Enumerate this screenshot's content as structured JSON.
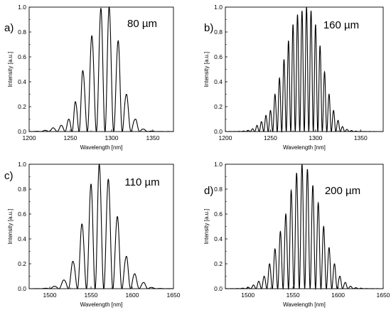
{
  "chart_data": [
    {
      "type": "line",
      "panel_label": "a)",
      "annotation": "80 µm",
      "xlabel": "Wavelength [nm]",
      "ylabel": "Intensity [a.u.]",
      "xlim": [
        1200,
        1375
      ],
      "ylim": [
        0,
        1.0
      ],
      "xticks": [
        "1200",
        "1250",
        "1300",
        "1350"
      ],
      "yticks": [
        "0.0",
        "0.2",
        "0.4",
        "0.6",
        "0.8",
        "1.0"
      ],
      "grid": false,
      "envelope": {
        "center": 1292,
        "sigma": 19,
        "min_intensity": 0.0,
        "period": 10.2,
        "fringe_phase": 1292
      },
      "peaks_x": [
        1219,
        1229,
        1239,
        1248,
        1256,
        1265,
        1276,
        1287,
        1297,
        1308,
        1318,
        1329,
        1339
      ],
      "peaks_y": [
        0.01,
        0.03,
        0.05,
        0.1,
        0.24,
        0.49,
        0.77,
        0.99,
        1.0,
        0.73,
        0.3,
        0.1,
        0.02
      ]
    },
    {
      "type": "line",
      "panel_label": "b)",
      "annotation": "160 µm",
      "xlabel": "Wavelength [nm]",
      "ylabel": "Intensity [a.u.]",
      "xlim": [
        1200,
        1375
      ],
      "ylim": [
        0,
        1.0
      ],
      "xticks": [
        "1200",
        "1250",
        "1300",
        "1350"
      ],
      "yticks": [
        "0.0",
        "0.2",
        "0.4",
        "0.6",
        "0.8",
        "1.0"
      ],
      "grid": false,
      "envelope": {
        "center": 1290,
        "sigma": 20,
        "min_intensity": 0.0,
        "period": 5.0,
        "fringe_phase": 1290
      },
      "peaks_x": [
        1235,
        1240,
        1245,
        1250,
        1255,
        1260,
        1265,
        1270,
        1275,
        1280,
        1285,
        1290,
        1295,
        1300,
        1305,
        1310,
        1315,
        1320,
        1325,
        1330
      ],
      "peaks_y": [
        0.05,
        0.08,
        0.13,
        0.17,
        0.3,
        0.43,
        0.58,
        0.73,
        0.86,
        0.94,
        0.97,
        1.0,
        0.97,
        0.86,
        0.69,
        0.48,
        0.3,
        0.17,
        0.09,
        0.04
      ]
    },
    {
      "type": "line",
      "panel_label": "c)",
      "annotation": "110 µm",
      "xlabel": "Wavelength [nm]",
      "ylabel": "Intensity [a.u.]",
      "xlim": [
        1475,
        1650
      ],
      "ylim": [
        0,
        1.0
      ],
      "xticks": [
        "1500",
        "1550",
        "1600",
        "1650"
      ],
      "yticks": [
        "0.0",
        "0.2",
        "0.4",
        "0.6",
        "0.8",
        "1.0"
      ],
      "grid": false,
      "envelope": {
        "center": 1560,
        "sigma": 22,
        "min_intensity": 0.0,
        "period": 10.8,
        "fringe_phase": 1560
      },
      "peaks_x": [
        1505,
        1517,
        1528,
        1539,
        1550,
        1560,
        1571,
        1582,
        1593,
        1603,
        1614,
        1624
      ],
      "peaks_y": [
        0.02,
        0.07,
        0.22,
        0.52,
        0.84,
        1.0,
        0.88,
        0.58,
        0.26,
        0.12,
        0.05,
        0.01
      ]
    },
    {
      "type": "line",
      "panel_label": "d)",
      "annotation": "200 µm",
      "xlabel": "Wavelength [nm]",
      "ylabel": "Intensity [a.u.]",
      "xlim": [
        1475,
        1650
      ],
      "ylim": [
        0,
        1.0
      ],
      "xticks": [
        "1500",
        "1550",
        "1600",
        "1650"
      ],
      "yticks": [
        "0.0",
        "0.2",
        "0.4",
        "0.6",
        "0.8",
        "1.0"
      ],
      "grid": false,
      "envelope": {
        "center": 1560,
        "sigma": 22,
        "min_intensity": 0.0,
        "period": 6.0,
        "fringe_phase": 1560
      },
      "peaks_x": [
        1506,
        1512,
        1518,
        1524,
        1530,
        1536,
        1542,
        1548,
        1554,
        1560,
        1566,
        1572,
        1578,
        1584,
        1590,
        1596,
        1602,
        1608,
        1614
      ],
      "peaks_y": [
        0.03,
        0.06,
        0.1,
        0.2,
        0.32,
        0.46,
        0.6,
        0.79,
        0.93,
        1.0,
        0.96,
        0.83,
        0.69,
        0.5,
        0.33,
        0.2,
        0.1,
        0.05,
        0.02
      ]
    }
  ]
}
